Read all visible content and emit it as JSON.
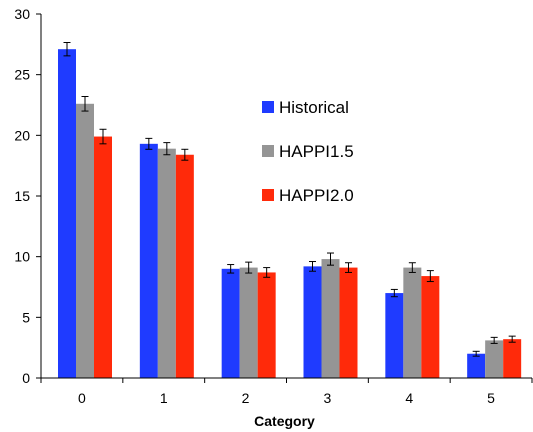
{
  "chart_data": {
    "type": "bar",
    "title": "",
    "xlabel": "Category",
    "ylabel": "",
    "ylim": [
      0,
      30
    ],
    "yticks": [
      0,
      5,
      10,
      15,
      20,
      25,
      30
    ],
    "categories": [
      "0",
      "1",
      "2",
      "3",
      "4",
      "5"
    ],
    "grid": false,
    "legend_position": "center-right",
    "series": [
      {
        "name": "Historical",
        "color": "#1f3bff",
        "values": [
          27.1,
          19.3,
          9.0,
          9.2,
          7.0,
          2.0
        ],
        "errors": [
          0.55,
          0.45,
          0.35,
          0.4,
          0.3,
          0.2
        ]
      },
      {
        "name": "HAPPI1.5",
        "color": "#959595",
        "values": [
          22.6,
          18.9,
          9.1,
          9.8,
          9.1,
          3.1
        ],
        "errors": [
          0.6,
          0.5,
          0.45,
          0.5,
          0.4,
          0.25
        ]
      },
      {
        "name": "HAPPI2.0",
        "color": "#ff2a0a",
        "values": [
          19.9,
          18.4,
          8.7,
          9.1,
          8.4,
          3.2
        ],
        "errors": [
          0.6,
          0.45,
          0.4,
          0.4,
          0.45,
          0.25
        ]
      }
    ]
  }
}
